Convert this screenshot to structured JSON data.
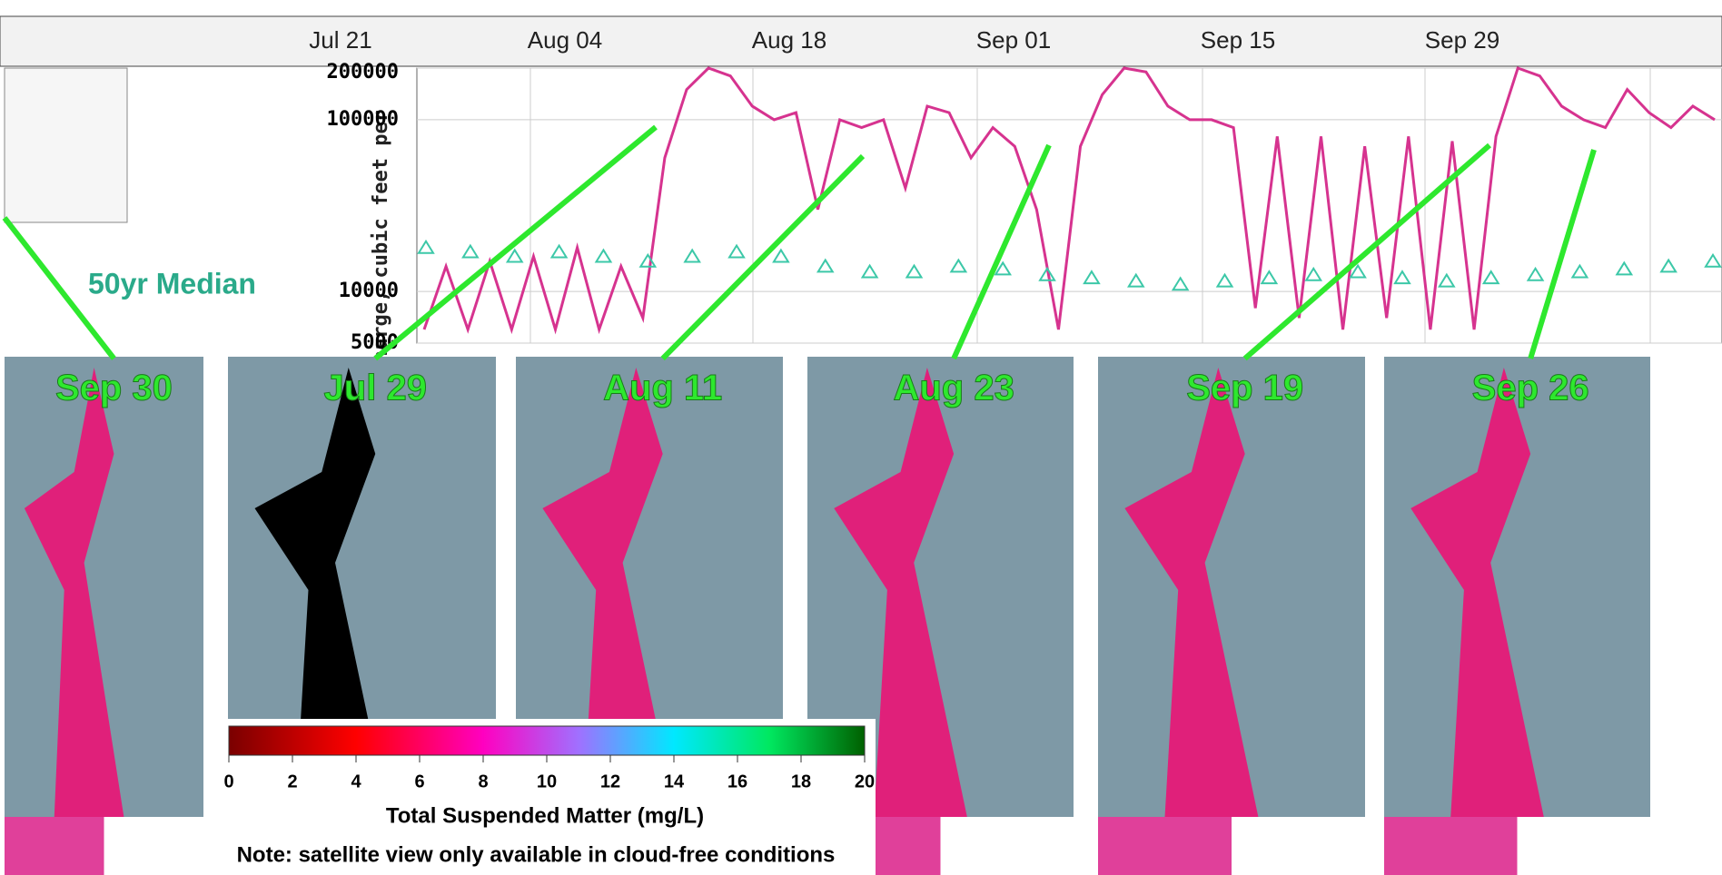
{
  "hydrograph": {
    "y_axis_label": "ischarge, cubic feet per",
    "yscale": "log",
    "ylim": [
      5000,
      200000
    ],
    "yticks": [
      5000,
      10000,
      100000,
      200000
    ],
    "x_labels": [
      "Jul 21",
      "Aug 04",
      "Aug 18",
      "Sep 01",
      "Sep 15",
      "Sep 29"
    ],
    "discharge": [
      6000,
      14000,
      6000,
      15000,
      6000,
      16000,
      6000,
      18000,
      6000,
      14000,
      7000,
      60000,
      150000,
      200000,
      180000,
      120000,
      100000,
      110000,
      30000,
      100000,
      90000,
      100000,
      40000,
      120000,
      110000,
      60000,
      90000,
      70000,
      30000,
      6000,
      70000,
      140000,
      200000,
      190000,
      120000,
      100000,
      100000,
      90000,
      8000,
      80000,
      7000,
      80000,
      6000,
      70000,
      7000,
      80000,
      6000,
      75000,
      6000,
      80000,
      200000,
      180000,
      120000,
      100000,
      90000,
      150000,
      110000,
      90000,
      120000,
      100000
    ],
    "median": [
      18000,
      17000,
      16000,
      17000,
      16000,
      15000,
      16000,
      17000,
      16000,
      14000,
      13000,
      13000,
      14000,
      13500,
      12500,
      12000,
      11500,
      11000,
      11500,
      12000,
      12500,
      13000,
      12000,
      11500,
      12000,
      12500,
      13000,
      13500,
      14000,
      15000
    ],
    "median_label": "50yr Median"
  },
  "images": [
    {
      "label": "Sep 30"
    },
    {
      "label": "Jul 29"
    },
    {
      "label": "Aug 11"
    },
    {
      "label": "Aug 23"
    },
    {
      "label": "Sep 19"
    },
    {
      "label": "Sep 26"
    }
  ],
  "colorbar": {
    "ticks": [
      0,
      2,
      4,
      6,
      8,
      10,
      12,
      14,
      16,
      18,
      20
    ],
    "title": "Total Suspended Matter (mg/L)"
  },
  "note": "Note: satellite view only available in cloud-free conditions"
}
